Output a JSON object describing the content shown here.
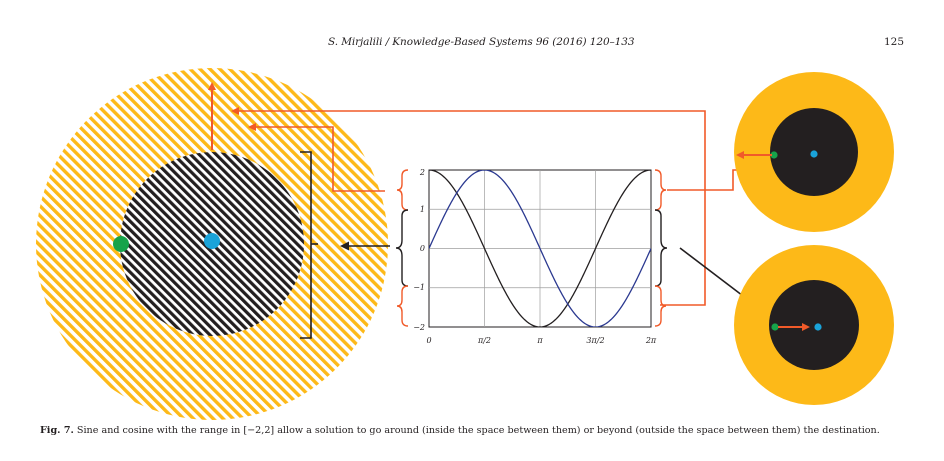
{
  "header": {
    "journal_ref": "S. Mirjalili / Knowledge-Based Systems 96 (2016) 120–133",
    "page_number": "125"
  },
  "figure": {
    "plot": {
      "y_ticks": [
        "2",
        "1",
        "0",
        "−1",
        "−2"
      ],
      "x_ticks": [
        "0",
        "π/2",
        "π",
        "3π/2",
        "2π"
      ]
    },
    "colors": {
      "outer_ring": "#fdb918",
      "inner_disk": "#231f20",
      "solution_point": "#16a34a",
      "destination_point": "#1aa3d9",
      "arrow_red": "#f15a29",
      "sine_curve": "#2b3990",
      "cosine_curve": "#231f20"
    }
  },
  "caption": {
    "label": "Fig. 7.",
    "text": "Sine and cosine with the range in [−2,2] allow a solution to go around (inside the space between them) or beyond (outside the space between them) the destination."
  }
}
